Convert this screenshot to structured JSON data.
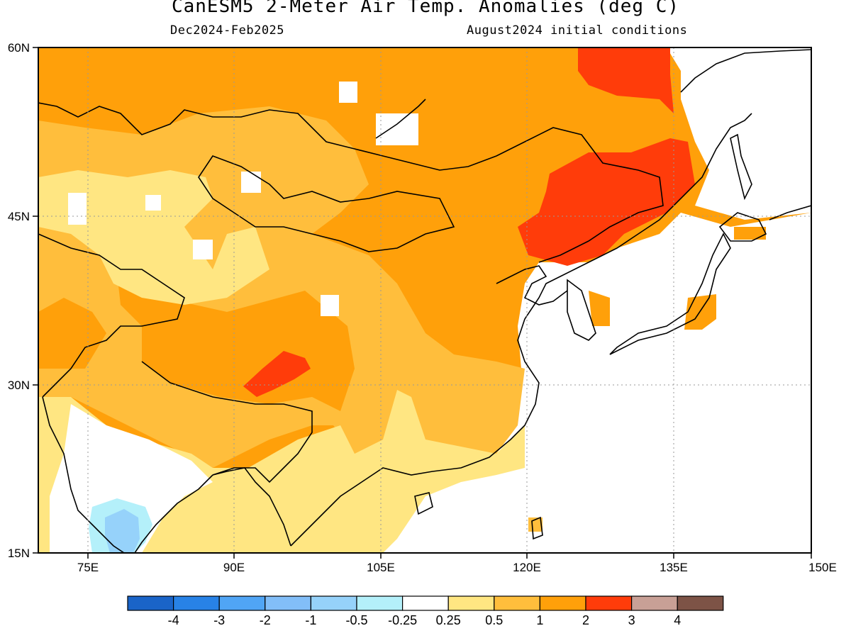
{
  "header": {
    "title": "CanESM5 2-Meter Air Temp. Anomalies (deg C)",
    "period": "Dec2024-Feb2025",
    "init": "August2024 initial conditions"
  },
  "map": {
    "lon_labels": [
      "75E",
      "90E",
      "105E",
      "120E",
      "135E",
      "150E"
    ],
    "lat_labels": [
      "60N",
      "45N",
      "30N",
      "15N"
    ]
  },
  "colorbar": {
    "colors": [
      "#1a64c8",
      "#2882e6",
      "#50a5f5",
      "#82bef8",
      "#96d2fa",
      "#b4f0fa",
      "#ffffff",
      "#ffe682",
      "#ffbe3c",
      "#ffa00a",
      "#ff3c0a",
      "#c8a096",
      "#7d5346"
    ],
    "labels": [
      "-4",
      "-3",
      "-2",
      "-1",
      "-0.5",
      "-0.25",
      "0.25",
      "0.5",
      "1",
      "2",
      "3",
      "4"
    ]
  }
}
